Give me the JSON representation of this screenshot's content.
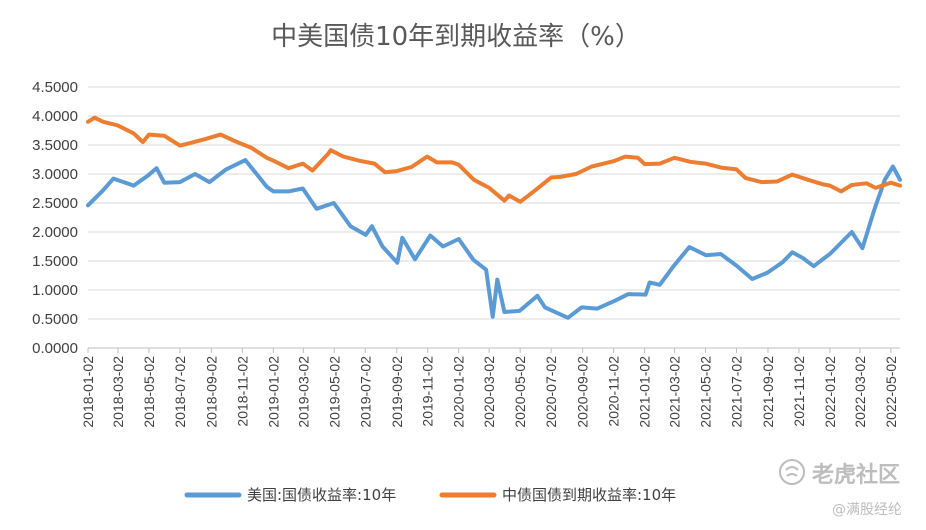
{
  "chart_data": {
    "type": "line",
    "title": "中美国债10年到期收益率（%）",
    "xlabel": "",
    "ylabel": "",
    "ylim": [
      0,
      4.5
    ],
    "yticks": [
      "0.0000",
      "0.5000",
      "1.0000",
      "1.5000",
      "2.0000",
      "2.5000",
      "3.0000",
      "3.5000",
      "4.0000",
      "4.5000"
    ],
    "x_start": "2018-01-02",
    "x_end": "2022-05-20",
    "xticks": [
      "2018-01-02",
      "2018-03-02",
      "2018-05-02",
      "2018-07-02",
      "2018-09-02",
      "2018-11-02",
      "2019-01-02",
      "2019-03-02",
      "2019-05-02",
      "2019-07-02",
      "2019-09-02",
      "2019-11-02",
      "2020-01-02",
      "2020-03-02",
      "2020-05-02",
      "2020-07-02",
      "2020-09-02",
      "2020-11-02",
      "2021-01-02",
      "2021-03-02",
      "2021-05-02",
      "2021-07-02",
      "2021-09-02",
      "2021-11-02",
      "2022-01-02",
      "2022-03-02",
      "2022-05-02"
    ],
    "grid": true,
    "legend": "bottom",
    "series": [
      {
        "name": "美国:国债收益率:10年",
        "color": "#5B9BD5",
        "points": [
          [
            "2018-01-02",
            2.46
          ],
          [
            "2018-02-01",
            2.72
          ],
          [
            "2018-02-21",
            2.92
          ],
          [
            "2018-04-02",
            2.8
          ],
          [
            "2018-05-01",
            2.98
          ],
          [
            "2018-05-17",
            3.1
          ],
          [
            "2018-06-01",
            2.85
          ],
          [
            "2018-07-02",
            2.86
          ],
          [
            "2018-08-01",
            3.0
          ],
          [
            "2018-08-29",
            2.86
          ],
          [
            "2018-10-01",
            3.08
          ],
          [
            "2018-11-08",
            3.24
          ],
          [
            "2018-11-30",
            3.0
          ],
          [
            "2018-12-20",
            2.78
          ],
          [
            "2019-01-02",
            2.7
          ],
          [
            "2019-02-01",
            2.7
          ],
          [
            "2019-03-01",
            2.75
          ],
          [
            "2019-03-28",
            2.4
          ],
          [
            "2019-05-01",
            2.5
          ],
          [
            "2019-06-03",
            2.1
          ],
          [
            "2019-07-03",
            1.95
          ],
          [
            "2019-07-15",
            2.1
          ],
          [
            "2019-08-05",
            1.75
          ],
          [
            "2019-09-03",
            1.47
          ],
          [
            "2019-09-13",
            1.9
          ],
          [
            "2019-10-08",
            1.53
          ],
          [
            "2019-11-07",
            1.94
          ],
          [
            "2019-12-02",
            1.75
          ],
          [
            "2020-01-02",
            1.88
          ],
          [
            "2020-01-31",
            1.52
          ],
          [
            "2020-02-25",
            1.35
          ],
          [
            "2020-03-09",
            0.54
          ],
          [
            "2020-03-18",
            1.18
          ],
          [
            "2020-04-01",
            0.62
          ],
          [
            "2020-05-01",
            0.64
          ],
          [
            "2020-06-05",
            0.9
          ],
          [
            "2020-06-20",
            0.7
          ],
          [
            "2020-08-04",
            0.52
          ],
          [
            "2020-08-31",
            0.7
          ],
          [
            "2020-10-01",
            0.68
          ],
          [
            "2020-11-06",
            0.82
          ],
          [
            "2020-12-01",
            0.93
          ],
          [
            "2021-01-04",
            0.92
          ],
          [
            "2021-01-12",
            1.13
          ],
          [
            "2021-02-01",
            1.09
          ],
          [
            "2021-03-01",
            1.42
          ],
          [
            "2021-03-31",
            1.74
          ],
          [
            "2021-05-03",
            1.6
          ],
          [
            "2021-06-01",
            1.62
          ],
          [
            "2021-07-02",
            1.42
          ],
          [
            "2021-08-02",
            1.19
          ],
          [
            "2021-09-01",
            1.3
          ],
          [
            "2021-10-01",
            1.48
          ],
          [
            "2021-10-20",
            1.65
          ],
          [
            "2021-11-10",
            1.55
          ],
          [
            "2021-12-01",
            1.41
          ],
          [
            "2022-01-03",
            1.63
          ],
          [
            "2022-02-14",
            2.0
          ],
          [
            "2022-03-07",
            1.72
          ],
          [
            "2022-03-31",
            2.4
          ],
          [
            "2022-04-20",
            2.9
          ],
          [
            "2022-05-06",
            3.13
          ],
          [
            "2022-05-20",
            2.9
          ]
        ]
      },
      {
        "name": "中债国债到期收益率:10年",
        "color": "#ED7D31",
        "points": [
          [
            "2018-01-02",
            3.9
          ],
          [
            "2018-01-15",
            3.97
          ],
          [
            "2018-02-01",
            3.9
          ],
          [
            "2018-03-01",
            3.84
          ],
          [
            "2018-04-02",
            3.7
          ],
          [
            "2018-04-20",
            3.55
          ],
          [
            "2018-05-02",
            3.68
          ],
          [
            "2018-06-01",
            3.66
          ],
          [
            "2018-07-02",
            3.49
          ],
          [
            "2018-07-20",
            3.53
          ],
          [
            "2018-08-20",
            3.6
          ],
          [
            "2018-09-20",
            3.68
          ],
          [
            "2018-10-20",
            3.56
          ],
          [
            "2018-11-20",
            3.45
          ],
          [
            "2018-12-20",
            3.28
          ],
          [
            "2019-01-02",
            3.23
          ],
          [
            "2019-02-01",
            3.1
          ],
          [
            "2019-03-01",
            3.18
          ],
          [
            "2019-03-20",
            3.06
          ],
          [
            "2019-04-20",
            3.35
          ],
          [
            "2019-04-25",
            3.41
          ],
          [
            "2019-05-20",
            3.3
          ],
          [
            "2019-06-20",
            3.23
          ],
          [
            "2019-07-20",
            3.18
          ],
          [
            "2019-08-10",
            3.03
          ],
          [
            "2019-09-02",
            3.05
          ],
          [
            "2019-10-01",
            3.12
          ],
          [
            "2019-11-01",
            3.3
          ],
          [
            "2019-11-20",
            3.2
          ],
          [
            "2019-12-20",
            3.2
          ],
          [
            "2020-01-02",
            3.16
          ],
          [
            "2020-02-01",
            2.9
          ],
          [
            "2020-03-02",
            2.76
          ],
          [
            "2020-04-01",
            2.54
          ],
          [
            "2020-04-10",
            2.63
          ],
          [
            "2020-05-02",
            2.52
          ],
          [
            "2020-06-01",
            2.72
          ],
          [
            "2020-07-02",
            2.94
          ],
          [
            "2020-07-20",
            2.95
          ],
          [
            "2020-08-20",
            3.0
          ],
          [
            "2020-09-20",
            3.13
          ],
          [
            "2020-11-02",
            3.22
          ],
          [
            "2020-11-25",
            3.3
          ],
          [
            "2020-12-20",
            3.28
          ],
          [
            "2021-01-02",
            3.17
          ],
          [
            "2021-02-01",
            3.18
          ],
          [
            "2021-03-02",
            3.28
          ],
          [
            "2021-04-02",
            3.21
          ],
          [
            "2021-05-02",
            3.18
          ],
          [
            "2021-06-02",
            3.11
          ],
          [
            "2021-07-02",
            3.08
          ],
          [
            "2021-07-20",
            2.93
          ],
          [
            "2021-08-20",
            2.86
          ],
          [
            "2021-09-20",
            2.87
          ],
          [
            "2021-10-20",
            2.99
          ],
          [
            "2021-11-20",
            2.9
          ],
          [
            "2021-12-20",
            2.82
          ],
          [
            "2022-01-02",
            2.8
          ],
          [
            "2022-01-24",
            2.7
          ],
          [
            "2022-02-14",
            2.81
          ],
          [
            "2022-03-15",
            2.84
          ],
          [
            "2022-04-02",
            2.76
          ],
          [
            "2022-05-02",
            2.85
          ],
          [
            "2022-05-20",
            2.8
          ]
        ]
      }
    ]
  },
  "watermark": {
    "brand": "老虎社区",
    "handle": "@满股经纶"
  }
}
